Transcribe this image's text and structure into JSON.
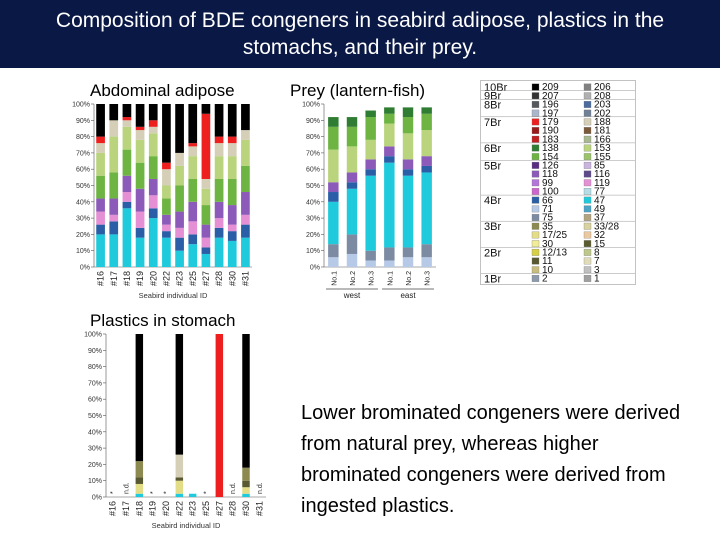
{
  "slide": {
    "title_line1": "Composition of BDE congeners in seabird adipose, plastics in the",
    "title_line2": "stomachs, and their prey.",
    "conclusion": "Lower brominated congeners were derived from natural prey, whereas higher brominated congeners were derived from ingested plastics."
  },
  "colors": {
    "title_bg": "#0a1845",
    "title_text": "#ffffff"
  },
  "legend": {
    "groups": [
      {
        "label": "10Br",
        "items": [
          {
            "code": "209",
            "color": "#000000"
          },
          {
            "code": "206",
            "color": "#808080"
          }
        ]
      },
      {
        "label": "9Br",
        "items": [
          {
            "code": "207",
            "color": "#333333"
          },
          {
            "code": "208",
            "color": "#b0b0b0"
          }
        ]
      },
      {
        "label": "8Br",
        "items": [
          {
            "code": "196",
            "color": "#55585c"
          },
          {
            "code": "203",
            "color": "#4a6aa0"
          },
          {
            "code": "197",
            "color": "#a9b6cc"
          },
          {
            "code": "202",
            "color": "#6f7f95"
          }
        ]
      },
      {
        "label": "7Br",
        "items": [
          {
            "code": "179",
            "color": "#ee1f1f"
          },
          {
            "code": "188",
            "color": "#d4cfb6"
          },
          {
            "code": "190",
            "color": "#9a1a1a"
          },
          {
            "code": "181",
            "color": "#7a5a3a"
          },
          {
            "code": "183",
            "color": "#c22020"
          },
          {
            "code": "166",
            "color": "#a8b890"
          }
        ]
      },
      {
        "label": "6Br",
        "items": [
          {
            "code": "138",
            "color": "#2f7d32"
          },
          {
            "code": "153",
            "color": "#b9d47d"
          },
          {
            "code": "154",
            "color": "#6eb442"
          },
          {
            "code": "155",
            "color": "#9bc46a"
          }
        ]
      },
      {
        "label": "5Br",
        "items": [
          {
            "code": "126",
            "color": "#5a2d82"
          },
          {
            "code": "85",
            "color": "#c9b3df"
          },
          {
            "code": "118",
            "color": "#8c5ab8"
          },
          {
            "code": "116",
            "color": "#5d4a8a"
          },
          {
            "code": "99",
            "color": "#b476d8"
          },
          {
            "code": "119",
            "color": "#e58fd4"
          },
          {
            "code": "100",
            "color": "#cc66cc"
          },
          {
            "code": "77",
            "color": "#b4dde6"
          }
        ]
      },
      {
        "label": "4Br",
        "items": [
          {
            "code": "66",
            "color": "#2a5fa8"
          },
          {
            "code": "47",
            "color": "#1ecadb"
          },
          {
            "code": "71",
            "color": "#b6c9e6"
          },
          {
            "code": "49",
            "color": "#4ba3c6"
          },
          {
            "code": "75",
            "color": "#7c8ba2"
          },
          {
            "code": "37",
            "color": "#b3a480"
          }
        ]
      },
      {
        "label": "3Br",
        "items": [
          {
            "code": "35",
            "color": "#8c8a50"
          },
          {
            "code": "33/28",
            "color": "#d9d29e"
          },
          {
            "code": "17/25",
            "color": "#e4dd88"
          },
          {
            "code": "32",
            "color": "#eac8a0"
          },
          {
            "code": "30",
            "color": "#f0ec98"
          },
          {
            "code": "15",
            "color": "#5a5a2f"
          }
        ]
      },
      {
        "label": "2Br",
        "items": [
          {
            "code": "12/13",
            "color": "#d6d045"
          },
          {
            "code": "8",
            "color": "#bec88a"
          },
          {
            "code": "11",
            "color": "#595931"
          },
          {
            "code": "7",
            "color": "#e0dbb8"
          },
          {
            "code": "10",
            "color": "#c9bd7d"
          },
          {
            "code": "3",
            "color": "#c0c0c0"
          }
        ]
      },
      {
        "label": "1Br",
        "items": [
          {
            "code": "2",
            "color": "#8c9aab"
          },
          {
            "code": "1",
            "color": "#a0a0a0"
          }
        ]
      }
    ]
  },
  "chart_data": [
    {
      "type": "bar",
      "stacked": true,
      "title": "Abdominal adipose",
      "xlabel": "Seabird individual ID",
      "ylabel": "",
      "ylim": [
        0,
        100
      ],
      "yticks": [
        "0%",
        "10%",
        "20%",
        "30%",
        "40%",
        "50%",
        "60%",
        "70%",
        "80%",
        "90%",
        "100%"
      ],
      "categories": [
        "#16",
        "#17",
        "#18",
        "#19",
        "#20",
        "#22",
        "#23",
        "#25",
        "#27",
        "#28",
        "#30",
        "#31"
      ],
      "note": [],
      "series": [
        {
          "color": "#1ecadb",
          "values": [
            20,
            20,
            36,
            18,
            30,
            18,
            10,
            14,
            8,
            18,
            16,
            18
          ]
        },
        {
          "color": "#2a5fa8",
          "values": [
            6,
            8,
            4,
            6,
            6,
            4,
            8,
            6,
            4,
            6,
            6,
            8
          ]
        },
        {
          "color": "#e58fd4",
          "values": [
            8,
            4,
            6,
            10,
            8,
            4,
            6,
            8,
            6,
            6,
            4,
            6
          ]
        },
        {
          "color": "#8c5ab8",
          "values": [
            8,
            10,
            10,
            14,
            10,
            6,
            10,
            12,
            8,
            10,
            12,
            14
          ]
        },
        {
          "color": "#6eb442",
          "values": [
            14,
            16,
            16,
            16,
            14,
            10,
            16,
            14,
            12,
            14,
            16,
            16
          ]
        },
        {
          "color": "#b9d47d",
          "values": [
            14,
            22,
            14,
            14,
            14,
            8,
            12,
            14,
            10,
            14,
            14,
            16
          ]
        },
        {
          "color": "#d4cfb6",
          "values": [
            6,
            10,
            4,
            6,
            4,
            10,
            8,
            6,
            6,
            8,
            8,
            6
          ]
        },
        {
          "color": "#ee1f1f",
          "values": [
            4,
            0,
            2,
            2,
            4,
            4,
            0,
            2,
            40,
            4,
            4,
            0
          ]
        },
        {
          "color": "#000000",
          "values": [
            20,
            10,
            8,
            14,
            10,
            36,
            30,
            24,
            6,
            20,
            20,
            16
          ]
        }
      ]
    },
    {
      "type": "bar",
      "stacked": true,
      "title": "Prey (lantern-fish)",
      "xlabel": "",
      "ylabel": "",
      "ylim": [
        0,
        100
      ],
      "yticks": [
        "0%",
        "10%",
        "20%",
        "30%",
        "40%",
        "50%",
        "60%",
        "70%",
        "80%",
        "90%",
        "100%"
      ],
      "categories": [
        "No.1",
        "No.2",
        "No.3",
        "No.1",
        "No.2",
        "No.3"
      ],
      "groups": [
        {
          "label": "west",
          "span": [
            0,
            2
          ]
        },
        {
          "label": "east",
          "span": [
            3,
            5
          ]
        }
      ],
      "note": [],
      "series": [
        {
          "color": "#b6c9e6",
          "values": [
            6,
            8,
            4,
            4,
            6,
            6
          ]
        },
        {
          "color": "#7c8ba2",
          "values": [
            8,
            12,
            6,
            8,
            6,
            8
          ]
        },
        {
          "color": "#1ecadb",
          "values": [
            26,
            28,
            46,
            52,
            44,
            44
          ]
        },
        {
          "color": "#2a5fa8",
          "values": [
            6,
            4,
            4,
            4,
            4,
            4
          ]
        },
        {
          "color": "#8c5ab8",
          "values": [
            6,
            6,
            6,
            6,
            6,
            6
          ]
        },
        {
          "color": "#b9d47d",
          "values": [
            20,
            16,
            12,
            14,
            16,
            16
          ]
        },
        {
          "color": "#6eb442",
          "values": [
            14,
            12,
            14,
            6,
            10,
            10
          ]
        },
        {
          "color": "#2f7d32",
          "values": [
            6,
            6,
            4,
            4,
            6,
            4
          ]
        },
        {
          "color": "#ffffff",
          "values": [
            8,
            8,
            4,
            2,
            2,
            2
          ]
        }
      ]
    },
    {
      "type": "bar",
      "stacked": true,
      "title": "Plastics in stomach",
      "xlabel": "Seabird individual ID",
      "ylabel": "",
      "ylim": [
        0,
        100
      ],
      "yticks": [
        "0%",
        "10%",
        "20%",
        "30%",
        "40%",
        "50%",
        "60%",
        "70%",
        "80%",
        "90%",
        "100%"
      ],
      "categories": [
        "#16",
        "#17",
        "#18",
        "#19",
        "#20",
        "#22",
        "#23",
        "#25",
        "#27",
        "#28",
        "#30",
        "#31"
      ],
      "note": [
        "*",
        "n.d.",
        "",
        "*",
        "*",
        "",
        "",
        "*",
        "",
        "n.d.",
        "",
        "n.d."
      ],
      "series": [
        {
          "color": "#1ecadb",
          "values": [
            0,
            0,
            2,
            0,
            0,
            2,
            2,
            0,
            0,
            0,
            2,
            0
          ]
        },
        {
          "color": "#e4dd88",
          "values": [
            0,
            0,
            6,
            0,
            0,
            8,
            0,
            0,
            0,
            0,
            4,
            0
          ]
        },
        {
          "color": "#595931",
          "values": [
            0,
            0,
            4,
            0,
            0,
            2,
            0,
            0,
            0,
            0,
            4,
            0
          ]
        },
        {
          "color": "#8c8a50",
          "values": [
            0,
            0,
            10,
            0,
            0,
            0,
            0,
            0,
            0,
            0,
            8,
            0
          ]
        },
        {
          "color": "#d4cfb6",
          "values": [
            0,
            0,
            0,
            0,
            0,
            14,
            0,
            0,
            0,
            0,
            0,
            0
          ]
        },
        {
          "color": "#ee1f1f",
          "values": [
            0,
            0,
            0,
            0,
            0,
            0,
            0,
            0,
            100,
            0,
            0,
            0
          ]
        },
        {
          "color": "#000000",
          "values": [
            0,
            0,
            78,
            0,
            0,
            74,
            0,
            0,
            0,
            0,
            82,
            0
          ]
        }
      ]
    }
  ]
}
